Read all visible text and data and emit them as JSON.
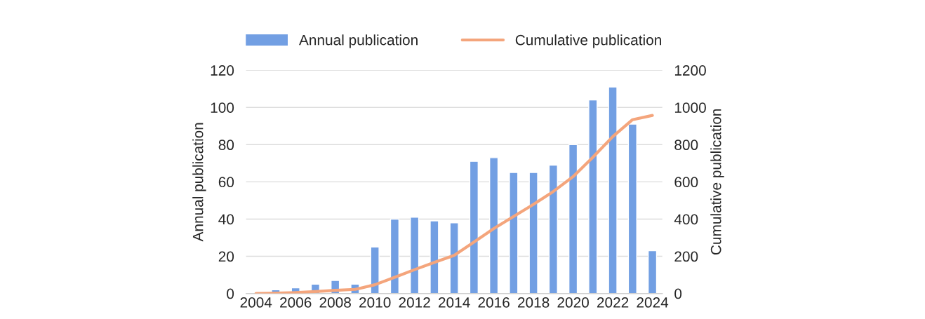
{
  "chart_data": {
    "type": "bar",
    "categories": [
      "2004",
      null,
      "2006",
      null,
      "2008",
      null,
      "2010",
      null,
      "2012",
      null,
      "2014",
      null,
      "2016",
      null,
      "2018",
      null,
      "2020",
      null,
      "2022",
      null,
      "2024"
    ],
    "series": [
      {
        "name": "Annual publication",
        "color": "#729fe3",
        "values": [
          null,
          2,
          3,
          5,
          7,
          5,
          25,
          40,
          41,
          39,
          38,
          71,
          73,
          65,
          65,
          69,
          80,
          104,
          111,
          91,
          23
        ]
      },
      {
        "name": "Cumulative publication",
        "type": "line",
        "axis": "y2",
        "color": "#f4a57c",
        "values": [
          0,
          2,
          5,
          10,
          17,
          22,
          47,
          87,
          128,
          167,
          205,
          276,
          349,
          414,
          479,
          548,
          628,
          732,
          843,
          934,
          957
        ]
      }
    ],
    "ylabel": "Annual publication",
    "y2label": "Cumulative publication",
    "ylim": [
      0,
      120
    ],
    "yticks": [
      0,
      20,
      40,
      60,
      80,
      100,
      120
    ],
    "y2lim": [
      0,
      1200
    ],
    "y2ticks": [
      0,
      200,
      400,
      600,
      800,
      1000,
      1200
    ],
    "grid": "y",
    "legend": "top"
  }
}
